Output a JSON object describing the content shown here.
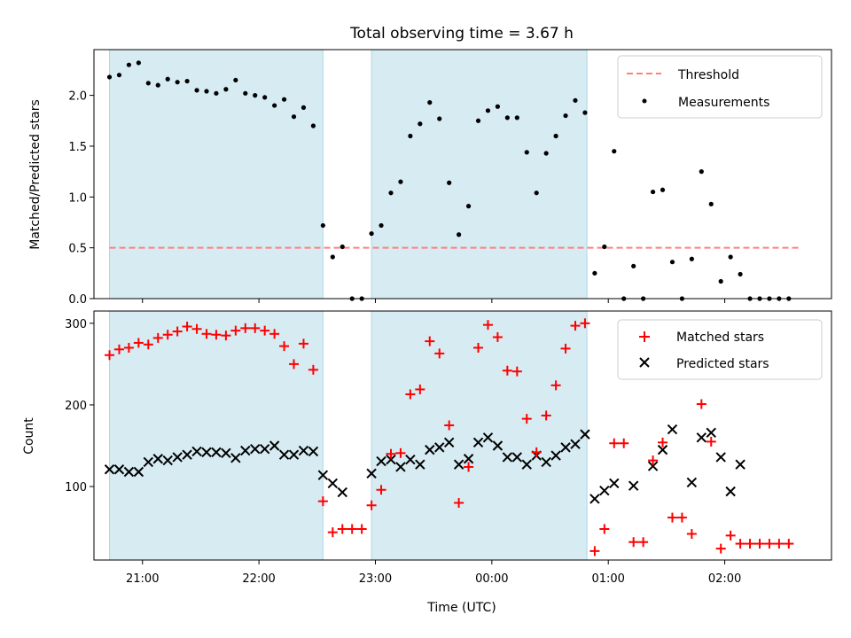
{
  "chart_data": [
    {
      "type": "scatter",
      "title": "Total observing time = 3.67 h",
      "ylabel": "Matched/Predicted stars",
      "xlabel": "",
      "xlim": [
        "20:35",
        "02:55"
      ],
      "ylim": [
        0,
        2.45
      ],
      "yticks": [
        0.0,
        0.5,
        1.0,
        1.5,
        2.0
      ],
      "ytick_labels": [
        "0.0",
        "0.5",
        "1.0",
        "1.5",
        "2.0"
      ],
      "legend": {
        "position": "top-right",
        "entries": [
          "Threshold",
          "Measurements"
        ]
      },
      "colors": {
        "threshold": "#ff7f7f",
        "measurements": "#000000",
        "observing_band": "#add8e6"
      },
      "observing_windows": [
        [
          "20:43",
          "22:33"
        ],
        [
          "22:58",
          "00:49"
        ]
      ],
      "threshold": {
        "name": "Threshold",
        "y": 0.5,
        "x_range": [
          "20:43",
          "02:38"
        ]
      },
      "series": [
        {
          "name": "Measurements",
          "points": [
            [
              "20:43",
              2.18
            ],
            [
              "20:48",
              2.2
            ],
            [
              "20:53",
              2.3
            ],
            [
              "20:58",
              2.32
            ],
            [
              "21:03",
              2.12
            ],
            [
              "21:08",
              2.1
            ],
            [
              "21:13",
              2.16
            ],
            [
              "21:18",
              2.13
            ],
            [
              "21:23",
              2.14
            ],
            [
              "21:28",
              2.05
            ],
            [
              "21:33",
              2.04
            ],
            [
              "21:38",
              2.02
            ],
            [
              "21:43",
              2.06
            ],
            [
              "21:48",
              2.15
            ],
            [
              "21:53",
              2.02
            ],
            [
              "21:58",
              2.0
            ],
            [
              "22:03",
              1.98
            ],
            [
              "22:08",
              1.9
            ],
            [
              "22:13",
              1.96
            ],
            [
              "22:18",
              1.79
            ],
            [
              "22:23",
              1.88
            ],
            [
              "22:28",
              1.7
            ],
            [
              "22:33",
              0.72
            ],
            [
              "22:38",
              0.41
            ],
            [
              "22:43",
              0.51
            ],
            [
              "22:48",
              0.0
            ],
            [
              "22:53",
              0.0
            ],
            [
              "22:58",
              0.64
            ],
            [
              "23:03",
              0.72
            ],
            [
              "23:08",
              1.04
            ],
            [
              "23:13",
              1.15
            ],
            [
              "23:18",
              1.6
            ],
            [
              "23:23",
              1.72
            ],
            [
              "23:28",
              1.93
            ],
            [
              "23:33",
              1.77
            ],
            [
              "23:38",
              1.14
            ],
            [
              "23:43",
              0.63
            ],
            [
              "23:48",
              0.91
            ],
            [
              "23:53",
              1.75
            ],
            [
              "23:58",
              1.85
            ],
            [
              "00:03",
              1.89
            ],
            [
              "00:08",
              1.78
            ],
            [
              "00:13",
              1.78
            ],
            [
              "00:18",
              1.44
            ],
            [
              "00:23",
              1.04
            ],
            [
              "00:28",
              1.43
            ],
            [
              "00:33",
              1.6
            ],
            [
              "00:38",
              1.8
            ],
            [
              "00:43",
              1.95
            ],
            [
              "00:48",
              1.83
            ],
            [
              "00:53",
              0.25
            ],
            [
              "00:58",
              0.51
            ],
            [
              "01:03",
              1.45
            ],
            [
              "01:08",
              0.0
            ],
            [
              "01:13",
              0.32
            ],
            [
              "01:18",
              0.0
            ],
            [
              "01:23",
              1.05
            ],
            [
              "01:28",
              1.07
            ],
            [
              "01:33",
              0.36
            ],
            [
              "01:38",
              0.0
            ],
            [
              "01:43",
              0.39
            ],
            [
              "01:48",
              1.25
            ],
            [
              "01:53",
              0.93
            ],
            [
              "01:58",
              0.17
            ],
            [
              "02:03",
              0.41
            ],
            [
              "02:08",
              0.24
            ],
            [
              "02:13",
              0.0
            ],
            [
              "02:18",
              0.0
            ],
            [
              "02:23",
              0.0
            ],
            [
              "02:28",
              0.0
            ],
            [
              "02:33",
              0.0
            ]
          ]
        }
      ]
    },
    {
      "type": "scatter",
      "title": "",
      "ylabel": "Count",
      "xlabel": "Time (UTC)",
      "xlim": [
        "20:35",
        "02:55"
      ],
      "ylim": [
        10,
        315
      ],
      "xticks": [
        "21:00",
        "22:00",
        "23:00",
        "00:00",
        "01:00",
        "02:00"
      ],
      "yticks": [
        100,
        200,
        300
      ],
      "ytick_labels": [
        "100",
        "200",
        "300"
      ],
      "legend": {
        "position": "top-right",
        "entries": [
          "Matched stars",
          "Predicted stars"
        ]
      },
      "colors": {
        "matched": "#ff0000",
        "predicted": "#000000",
        "observing_band": "#add8e6"
      },
      "observing_windows": [
        [
          "20:43",
          "22:33"
        ],
        [
          "22:58",
          "00:49"
        ]
      ],
      "series": [
        {
          "name": "Matched stars",
          "points": [
            [
              "20:43",
              261
            ],
            [
              "20:48",
              268
            ],
            [
              "20:53",
              270
            ],
            [
              "20:58",
              276
            ],
            [
              "21:03",
              274
            ],
            [
              "21:08",
              282
            ],
            [
              "21:13",
              286
            ],
            [
              "21:18",
              290
            ],
            [
              "21:23",
              296
            ],
            [
              "21:28",
              293
            ],
            [
              "21:33",
              287
            ],
            [
              "21:38",
              286
            ],
            [
              "21:43",
              285
            ],
            [
              "21:48",
              291
            ],
            [
              "21:53",
              294
            ],
            [
              "21:58",
              294
            ],
            [
              "22:03",
              291
            ],
            [
              "22:08",
              287
            ],
            [
              "22:13",
              272
            ],
            [
              "22:18",
              250
            ],
            [
              "22:23",
              275
            ],
            [
              "22:28",
              243
            ],
            [
              "22:33",
              82
            ],
            [
              "22:38",
              44
            ],
            [
              "22:43",
              48
            ],
            [
              "22:48",
              48
            ],
            [
              "22:53",
              48
            ],
            [
              "22:58",
              77
            ],
            [
              "23:03",
              96
            ],
            [
              "23:08",
              140
            ],
            [
              "23:13",
              141
            ],
            [
              "23:18",
              213
            ],
            [
              "23:23",
              219
            ],
            [
              "23:28",
              278
            ],
            [
              "23:33",
              263
            ],
            [
              "23:38",
              175
            ],
            [
              "23:43",
              80
            ],
            [
              "23:48",
              124
            ],
            [
              "23:53",
              270
            ],
            [
              "23:58",
              298
            ],
            [
              "00:03",
              283
            ],
            [
              "00:08",
              242
            ],
            [
              "00:13",
              241
            ],
            [
              "00:18",
              183
            ],
            [
              "00:23",
              142
            ],
            [
              "00:28",
              187
            ],
            [
              "00:33",
              224
            ],
            [
              "00:38",
              269
            ],
            [
              "00:43",
              297
            ],
            [
              "00:48",
              300
            ],
            [
              "00:53",
              21
            ],
            [
              "00:58",
              48
            ],
            [
              "01:03",
              153
            ],
            [
              "01:08",
              153
            ],
            [
              "01:13",
              32
            ],
            [
              "01:18",
              32
            ],
            [
              "01:23",
              132
            ],
            [
              "01:28",
              154
            ],
            [
              "01:33",
              62
            ],
            [
              "01:38",
              62
            ],
            [
              "01:43",
              42
            ],
            [
              "01:48",
              201
            ],
            [
              "01:53",
              155
            ],
            [
              "01:58",
              24
            ],
            [
              "02:03",
              40
            ],
            [
              "02:08",
              30
            ],
            [
              "02:13",
              30
            ],
            [
              "02:18",
              30
            ],
            [
              "02:23",
              30
            ],
            [
              "02:28",
              30
            ],
            [
              "02:33",
              30
            ]
          ]
        },
        {
          "name": "Predicted stars",
          "points": [
            [
              "20:43",
              121
            ],
            [
              "20:48",
              121
            ],
            [
              "20:53",
              118
            ],
            [
              "20:58",
              118
            ],
            [
              "21:03",
              130
            ],
            [
              "21:08",
              134
            ],
            [
              "21:13",
              132
            ],
            [
              "21:18",
              136
            ],
            [
              "21:23",
              139
            ],
            [
              "21:28",
              143
            ],
            [
              "21:33",
              142
            ],
            [
              "21:38",
              142
            ],
            [
              "21:43",
              141
            ],
            [
              "21:48",
              135
            ],
            [
              "21:53",
              144
            ],
            [
              "21:58",
              146
            ],
            [
              "22:03",
              146
            ],
            [
              "22:08",
              150
            ],
            [
              "22:13",
              139
            ],
            [
              "22:18",
              139
            ],
            [
              "22:23",
              144
            ],
            [
              "22:28",
              143
            ],
            [
              "22:33",
              114
            ],
            [
              "22:38",
              104
            ],
            [
              "22:43",
              93
            ],
            [
              "22:58",
              116
            ],
            [
              "23:03",
              131
            ],
            [
              "23:08",
              133
            ],
            [
              "23:13",
              124
            ],
            [
              "23:18",
              133
            ],
            [
              "23:23",
              127
            ],
            [
              "23:28",
              145
            ],
            [
              "23:33",
              148
            ],
            [
              "23:38",
              154
            ],
            [
              "23:43",
              127
            ],
            [
              "23:48",
              134
            ],
            [
              "23:53",
              154
            ],
            [
              "23:58",
              160
            ],
            [
              "00:03",
              150
            ],
            [
              "00:08",
              136
            ],
            [
              "00:13",
              136
            ],
            [
              "00:18",
              127
            ],
            [
              "00:23",
              138
            ],
            [
              "00:28",
              130
            ],
            [
              "00:33",
              138
            ],
            [
              "00:38",
              148
            ],
            [
              "00:43",
              152
            ],
            [
              "00:48",
              164
            ],
            [
              "00:53",
              85
            ],
            [
              "00:58",
              95
            ],
            [
              "01:03",
              104
            ],
            [
              "01:13",
              101
            ],
            [
              "01:23",
              125
            ],
            [
              "01:28",
              145
            ],
            [
              "01:33",
              170
            ],
            [
              "01:43",
              105
            ],
            [
              "01:48",
              160
            ],
            [
              "01:53",
              166
            ],
            [
              "01:58",
              136
            ],
            [
              "02:03",
              94
            ],
            [
              "02:08",
              127
            ]
          ]
        }
      ]
    }
  ]
}
